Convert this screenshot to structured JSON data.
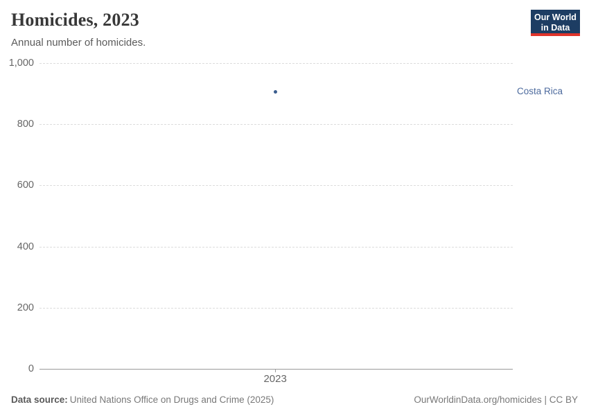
{
  "header": {
    "title": "Homicides, 2023",
    "subtitle": "Annual number of homicides.",
    "logo": {
      "line1": "Our World",
      "line2": "in Data",
      "bg_color": "#1d3d63",
      "accent_color": "#e0342b"
    }
  },
  "chart_data": {
    "type": "scatter",
    "title": "Homicides, 2023",
    "subtitle": "Annual number of homicides.",
    "series": [
      {
        "name": "Costa Rica",
        "x": [
          2023
        ],
        "values": [
          905
        ],
        "color": "#3a5d8e"
      }
    ],
    "x_ticks": [
      2023
    ],
    "x_tick_labels": [
      "2023"
    ],
    "x_frac": 0.498,
    "y_ticks": [
      0,
      200,
      400,
      600,
      800,
      1000
    ],
    "y_tick_labels": [
      "0",
      "200",
      "400",
      "600",
      "800",
      "1,000"
    ],
    "ylim": [
      0,
      1000
    ],
    "grid": "horizontal-dashed",
    "legend_position": "right-of-point",
    "entity_label": "Costa Rica",
    "entity_label_color": "#4c6a9d"
  },
  "footer": {
    "source_label": "Data source:",
    "source_text": "United Nations Office on Drugs and Crime (2025)",
    "link_text": "OurWorldinData.org/homicides | CC BY"
  }
}
